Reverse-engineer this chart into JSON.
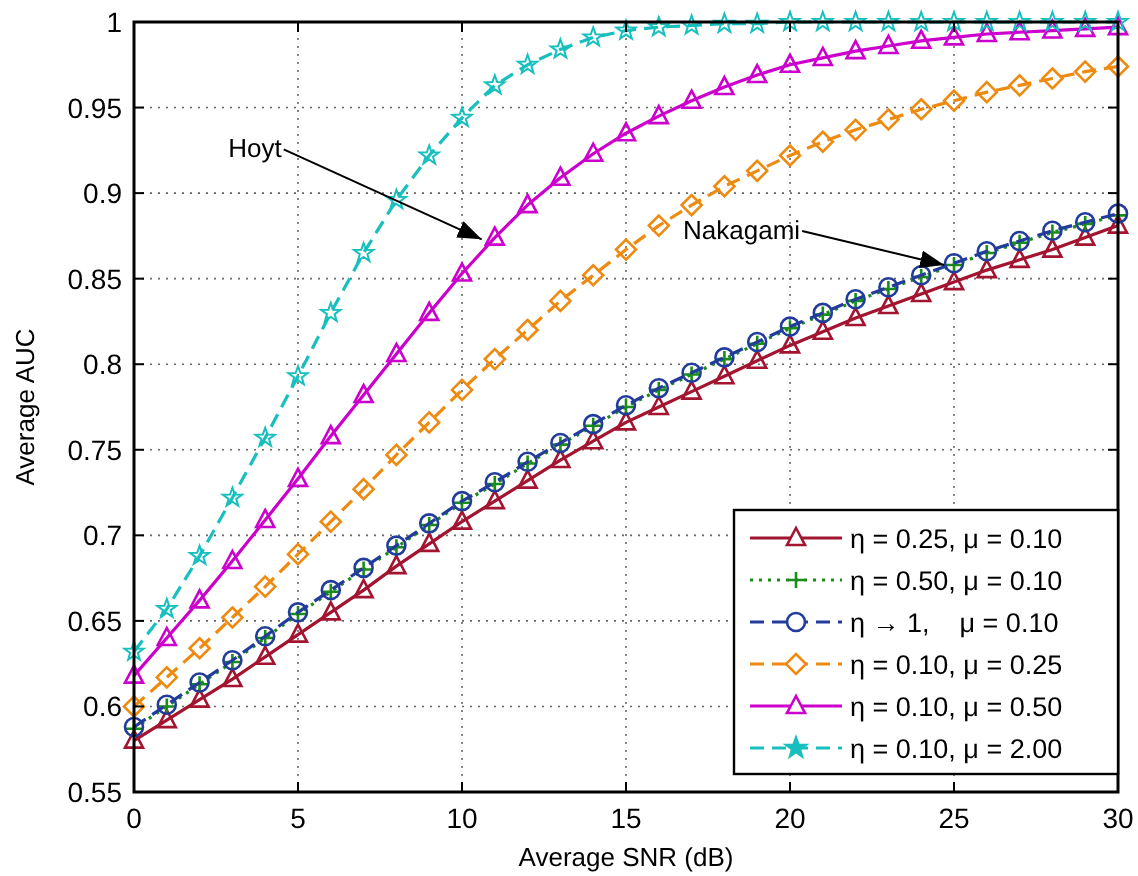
{
  "chart_data": {
    "type": "line",
    "xlabel": "Average SNR (dB)",
    "ylabel": "Average AUC",
    "x": [
      0,
      1,
      2,
      3,
      4,
      5,
      6,
      7,
      8,
      9,
      10,
      11,
      12,
      13,
      14,
      15,
      16,
      17,
      18,
      19,
      20,
      21,
      22,
      23,
      24,
      25,
      26,
      27,
      28,
      29,
      30
    ],
    "series": [
      {
        "name": "η = 0.25, μ = 0.10",
        "color": "#a2142f",
        "marker": "triangle",
        "line_style": "solid",
        "values": [
          0.58,
          0.592,
          0.604,
          0.616,
          0.629,
          0.642,
          0.655,
          0.668,
          0.682,
          0.695,
          0.708,
          0.72,
          0.732,
          0.744,
          0.755,
          0.766,
          0.775,
          0.784,
          0.793,
          0.802,
          0.811,
          0.819,
          0.827,
          0.834,
          0.841,
          0.848,
          0.855,
          0.861,
          0.867,
          0.874,
          0.881
        ]
      },
      {
        "name": "η = 0.50, μ = 0.10",
        "color": "#1a8c1a",
        "marker": "cross",
        "line_style": "dotted",
        "values": [
          0.587,
          0.6,
          0.613,
          0.626,
          0.64,
          0.654,
          0.667,
          0.68,
          0.693,
          0.706,
          0.719,
          0.73,
          0.742,
          0.753,
          0.764,
          0.775,
          0.785,
          0.794,
          0.803,
          0.812,
          0.821,
          0.829,
          0.837,
          0.844,
          0.851,
          0.858,
          0.865,
          0.871,
          0.877,
          0.882,
          0.887
        ]
      },
      {
        "name": "η → 1,    μ = 0.10",
        "color": "#223c9c",
        "marker": "circle",
        "line_style": "dashed",
        "values": [
          0.588,
          0.601,
          0.614,
          0.627,
          0.641,
          0.655,
          0.668,
          0.681,
          0.694,
          0.707,
          0.72,
          0.731,
          0.743,
          0.754,
          0.765,
          0.776,
          0.786,
          0.795,
          0.804,
          0.813,
          0.822,
          0.83,
          0.838,
          0.845,
          0.852,
          0.859,
          0.866,
          0.872,
          0.878,
          0.883,
          0.888
        ]
      },
      {
        "name": "η = 0.10, μ = 0.25",
        "color": "#ee8a10",
        "marker": "diamond",
        "line_style": "dashed",
        "values": [
          0.6,
          0.617,
          0.634,
          0.652,
          0.67,
          0.689,
          0.708,
          0.727,
          0.747,
          0.766,
          0.785,
          0.803,
          0.82,
          0.837,
          0.852,
          0.867,
          0.881,
          0.893,
          0.904,
          0.913,
          0.922,
          0.93,
          0.937,
          0.943,
          0.949,
          0.954,
          0.959,
          0.963,
          0.967,
          0.971,
          0.974
        ]
      },
      {
        "name": "η = 0.10, μ = 0.50",
        "color": "#cc00cc",
        "marker": "triangle",
        "line_style": "solid",
        "values": [
          0.618,
          0.64,
          0.662,
          0.685,
          0.709,
          0.733,
          0.758,
          0.782,
          0.806,
          0.83,
          0.853,
          0.874,
          0.893,
          0.909,
          0.923,
          0.935,
          0.945,
          0.954,
          0.962,
          0.969,
          0.975,
          0.979,
          0.983,
          0.986,
          0.989,
          0.991,
          0.993,
          0.994,
          0.995,
          0.996,
          0.997
        ]
      },
      {
        "name": "η = 0.10, μ = 2.00",
        "color": "#17bfbf",
        "marker": "star",
        "line_style": "dashed",
        "values": [
          0.632,
          0.657,
          0.688,
          0.722,
          0.757,
          0.793,
          0.83,
          0.865,
          0.896,
          0.922,
          0.944,
          0.963,
          0.975,
          0.984,
          0.991,
          0.995,
          0.997,
          0.998,
          0.999,
          0.999,
          1.0,
          1.0,
          1.0,
          1.0,
          1.0,
          1.0,
          1.0,
          1.0,
          1.0,
          1.0,
          1.0
        ]
      }
    ],
    "xlim": [
      0,
      30
    ],
    "xticks": [
      0,
      5,
      10,
      15,
      20,
      25,
      30
    ],
    "ylim": [
      0.55,
      1
    ],
    "yticks": [
      0.55,
      0.6,
      0.65,
      0.7,
      0.75,
      0.8,
      0.85,
      0.9,
      0.95,
      1
    ],
    "grid": true,
    "legend": "bottom right",
    "annotations": [
      {
        "text": "Hoyt",
        "x": 10.6,
        "y": 0.873
      },
      {
        "text": "Nakagami",
        "x": 24.7,
        "y": 0.858
      }
    ]
  }
}
